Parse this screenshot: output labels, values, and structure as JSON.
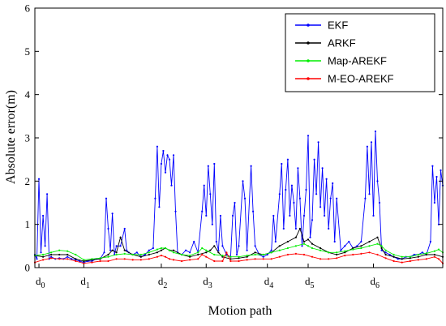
{
  "chart_data": {
    "type": "line",
    "title": "",
    "xlabel": "Motion path",
    "ylabel": "Absolute error(m)",
    "ylim": [
      0,
      6
    ],
    "yticks": [
      0,
      1,
      2,
      3,
      4,
      5,
      6
    ],
    "xlim": [
      0,
      100
    ],
    "grid": false,
    "legend_position": "top-right",
    "x_markers": [
      {
        "base": "d",
        "sub": "0",
        "x": 1
      },
      {
        "base": "d",
        "sub": "1",
        "x": 12
      },
      {
        "base": "d",
        "sub": "2",
        "x": 31
      },
      {
        "base": "d",
        "sub": "3",
        "x": 42
      },
      {
        "base": "d",
        "sub": "4",
        "x": 57
      },
      {
        "base": "d",
        "sub": "5",
        "x": 67
      },
      {
        "base": "d",
        "sub": "6",
        "x": 83
      }
    ],
    "series": [
      {
        "name": "EKF",
        "color": "#0000ff",
        "points": [
          [
            0,
            0.3
          ],
          [
            0.5,
            0.2
          ],
          [
            1,
            2.05
          ],
          [
            1.5,
            0.35
          ],
          [
            2,
            1.2
          ],
          [
            2.5,
            0.5
          ],
          [
            3,
            1.7
          ],
          [
            3.5,
            0.2
          ],
          [
            4,
            0.25
          ],
          [
            5,
            0.2
          ],
          [
            6,
            0.22
          ],
          [
            7,
            0.2
          ],
          [
            8,
            0.25
          ],
          [
            9,
            0.2
          ],
          [
            10,
            0.18
          ],
          [
            11,
            0.15
          ],
          [
            12,
            0.12
          ],
          [
            13,
            0.15
          ],
          [
            14,
            0.15
          ],
          [
            15,
            0.2
          ],
          [
            16,
            0.2
          ],
          [
            17,
            0.35
          ],
          [
            17.5,
            1.6
          ],
          [
            18,
            0.9
          ],
          [
            18.5,
            0.4
          ],
          [
            19,
            1.25
          ],
          [
            19.5,
            0.3
          ],
          [
            20,
            0.5
          ],
          [
            21,
            0.5
          ],
          [
            22,
            0.9
          ],
          [
            22.5,
            0.4
          ],
          [
            23,
            0.35
          ],
          [
            24,
            0.3
          ],
          [
            25,
            0.35
          ],
          [
            26,
            0.25
          ],
          [
            27,
            0.3
          ],
          [
            28,
            0.4
          ],
          [
            29,
            0.45
          ],
          [
            29.5,
            1.6
          ],
          [
            30,
            2.8
          ],
          [
            30.5,
            1.4
          ],
          [
            31,
            2.4
          ],
          [
            31.5,
            2.7
          ],
          [
            32,
            2.2
          ],
          [
            32.5,
            2.6
          ],
          [
            33,
            2.5
          ],
          [
            33.5,
            1.9
          ],
          [
            34,
            2.6
          ],
          [
            34.5,
            1.3
          ],
          [
            35,
            0.35
          ],
          [
            36,
            0.3
          ],
          [
            37,
            0.4
          ],
          [
            38,
            0.35
          ],
          [
            39,
            0.6
          ],
          [
            40,
            0.35
          ],
          [
            41,
            1.3
          ],
          [
            41.5,
            1.9
          ],
          [
            42,
            1.2
          ],
          [
            42.5,
            2.35
          ],
          [
            43,
            1.7
          ],
          [
            43.5,
            1.0
          ],
          [
            44,
            2.4
          ],
          [
            44.5,
            0.6
          ],
          [
            45,
            0.4
          ],
          [
            45.5,
            1.2
          ],
          [
            46,
            0.5
          ],
          [
            47,
            0.3
          ],
          [
            48,
            0.25
          ],
          [
            48.5,
            1.2
          ],
          [
            49,
            1.5
          ],
          [
            49.5,
            0.3
          ],
          [
            50,
            0.5
          ],
          [
            51,
            2.0
          ],
          [
            51.5,
            1.6
          ],
          [
            52,
            0.4
          ],
          [
            53,
            2.35
          ],
          [
            53.5,
            1.3
          ],
          [
            54,
            0.5
          ],
          [
            55,
            0.3
          ],
          [
            56,
            0.25
          ],
          [
            57,
            0.3
          ],
          [
            58,
            0.4
          ],
          [
            58.5,
            1.2
          ],
          [
            59,
            0.6
          ],
          [
            60,
            1.7
          ],
          [
            60.5,
            2.4
          ],
          [
            61,
            0.9
          ],
          [
            61.5,
            1.8
          ],
          [
            62,
            2.5
          ],
          [
            62.5,
            1.2
          ],
          [
            63,
            1.9
          ],
          [
            63.5,
            1.5
          ],
          [
            64,
            0.9
          ],
          [
            64.5,
            2.3
          ],
          [
            65,
            1.6
          ],
          [
            65.5,
            0.5
          ],
          [
            66,
            1.2
          ],
          [
            66.5,
            1.8
          ],
          [
            67,
            3.05
          ],
          [
            67.5,
            0.7
          ],
          [
            68,
            1.1
          ],
          [
            68.5,
            2.5
          ],
          [
            69,
            1.7
          ],
          [
            69.5,
            2.9
          ],
          [
            70,
            1.4
          ],
          [
            70.5,
            2.3
          ],
          [
            71,
            1.2
          ],
          [
            71.5,
            2.05
          ],
          [
            72,
            0.9
          ],
          [
            72.5,
            1.6
          ],
          [
            73,
            1.95
          ],
          [
            73.5,
            0.6
          ],
          [
            74,
            1.6
          ],
          [
            75,
            0.4
          ],
          [
            76,
            0.5
          ],
          [
            77,
            0.6
          ],
          [
            78,
            0.45
          ],
          [
            79,
            0.5
          ],
          [
            80,
            0.6
          ],
          [
            81,
            1.6
          ],
          [
            81.5,
            2.8
          ],
          [
            82,
            1.7
          ],
          [
            82.5,
            2.9
          ],
          [
            83,
            1.2
          ],
          [
            83.5,
            3.15
          ],
          [
            84,
            2.0
          ],
          [
            84.5,
            1.5
          ],
          [
            85,
            0.4
          ],
          [
            86,
            0.35
          ],
          [
            87,
            0.3
          ],
          [
            88,
            0.25
          ],
          [
            89,
            0.2
          ],
          [
            90,
            0.2
          ],
          [
            91,
            0.25
          ],
          [
            92,
            0.25
          ],
          [
            93,
            0.3
          ],
          [
            94,
            0.3
          ],
          [
            95,
            0.35
          ],
          [
            96,
            0.3
          ],
          [
            97,
            0.6
          ],
          [
            97.5,
            2.35
          ],
          [
            98,
            1.5
          ],
          [
            98.5,
            2.1
          ],
          [
            99,
            1.0
          ],
          [
            99.5,
            2.25
          ],
          [
            100,
            1.9
          ]
        ]
      },
      {
        "name": "ARKF",
        "color": "#000000",
        "points": [
          [
            0,
            0.28
          ],
          [
            2,
            0.25
          ],
          [
            4,
            0.3
          ],
          [
            6,
            0.3
          ],
          [
            8,
            0.3
          ],
          [
            10,
            0.2
          ],
          [
            12,
            0.15
          ],
          [
            14,
            0.18
          ],
          [
            16,
            0.2
          ],
          [
            18,
            0.3
          ],
          [
            19,
            0.4
          ],
          [
            20,
            0.35
          ],
          [
            21,
            0.7
          ],
          [
            22,
            0.4
          ],
          [
            24,
            0.3
          ],
          [
            26,
            0.25
          ],
          [
            28,
            0.3
          ],
          [
            30,
            0.35
          ],
          [
            31,
            0.4
          ],
          [
            32,
            0.45
          ],
          [
            33,
            0.4
          ],
          [
            34,
            0.4
          ],
          [
            36,
            0.3
          ],
          [
            38,
            0.25
          ],
          [
            40,
            0.3
          ],
          [
            42,
            0.35
          ],
          [
            43,
            0.4
          ],
          [
            44,
            0.5
          ],
          [
            45,
            0.35
          ],
          [
            46,
            0.25
          ],
          [
            48,
            0.2
          ],
          [
            50,
            0.22
          ],
          [
            52,
            0.25
          ],
          [
            54,
            0.35
          ],
          [
            56,
            0.3
          ],
          [
            58,
            0.35
          ],
          [
            60,
            0.5
          ],
          [
            62,
            0.6
          ],
          [
            64,
            0.7
          ],
          [
            65,
            0.9
          ],
          [
            66,
            0.6
          ],
          [
            67,
            0.65
          ],
          [
            68,
            0.55
          ],
          [
            70,
            0.45
          ],
          [
            72,
            0.35
          ],
          [
            74,
            0.3
          ],
          [
            76,
            0.35
          ],
          [
            78,
            0.45
          ],
          [
            80,
            0.5
          ],
          [
            82,
            0.6
          ],
          [
            84,
            0.7
          ],
          [
            85,
            0.45
          ],
          [
            86,
            0.3
          ],
          [
            88,
            0.25
          ],
          [
            90,
            0.2
          ],
          [
            92,
            0.22
          ],
          [
            94,
            0.25
          ],
          [
            96,
            0.3
          ],
          [
            98,
            0.3
          ],
          [
            100,
            0.25
          ]
        ]
      },
      {
        "name": "Map-AREKF",
        "color": "#00ee00",
        "points": [
          [
            0,
            0.28
          ],
          [
            2,
            0.3
          ],
          [
            4,
            0.35
          ],
          [
            6,
            0.4
          ],
          [
            8,
            0.38
          ],
          [
            10,
            0.3
          ],
          [
            12,
            0.18
          ],
          [
            14,
            0.2
          ],
          [
            16,
            0.22
          ],
          [
            18,
            0.25
          ],
          [
            20,
            0.3
          ],
          [
            22,
            0.32
          ],
          [
            24,
            0.3
          ],
          [
            26,
            0.3
          ],
          [
            28,
            0.35
          ],
          [
            30,
            0.42
          ],
          [
            31,
            0.45
          ],
          [
            32,
            0.45
          ],
          [
            33,
            0.4
          ],
          [
            34,
            0.35
          ],
          [
            36,
            0.3
          ],
          [
            38,
            0.28
          ],
          [
            40,
            0.35
          ],
          [
            41,
            0.45
          ],
          [
            42,
            0.4
          ],
          [
            44,
            0.3
          ],
          [
            46,
            0.28
          ],
          [
            48,
            0.25
          ],
          [
            50,
            0.25
          ],
          [
            52,
            0.28
          ],
          [
            54,
            0.3
          ],
          [
            56,
            0.3
          ],
          [
            58,
            0.35
          ],
          [
            60,
            0.4
          ],
          [
            62,
            0.45
          ],
          [
            64,
            0.5
          ],
          [
            66,
            0.55
          ],
          [
            67,
            0.5
          ],
          [
            68,
            0.45
          ],
          [
            70,
            0.4
          ],
          [
            72,
            0.35
          ],
          [
            74,
            0.35
          ],
          [
            76,
            0.38
          ],
          [
            78,
            0.42
          ],
          [
            80,
            0.45
          ],
          [
            82,
            0.5
          ],
          [
            84,
            0.55
          ],
          [
            85,
            0.5
          ],
          [
            86,
            0.4
          ],
          [
            88,
            0.3
          ],
          [
            90,
            0.25
          ],
          [
            92,
            0.25
          ],
          [
            94,
            0.3
          ],
          [
            96,
            0.33
          ],
          [
            98,
            0.38
          ],
          [
            99,
            0.42
          ],
          [
            100,
            0.35
          ]
        ]
      },
      {
        "name": "M-EO-AREKF",
        "color": "#ff0000",
        "points": [
          [
            0,
            0.12
          ],
          [
            2,
            0.18
          ],
          [
            4,
            0.22
          ],
          [
            6,
            0.2
          ],
          [
            8,
            0.2
          ],
          [
            10,
            0.15
          ],
          [
            12,
            0.1
          ],
          [
            14,
            0.12
          ],
          [
            16,
            0.15
          ],
          [
            18,
            0.15
          ],
          [
            20,
            0.2
          ],
          [
            22,
            0.2
          ],
          [
            24,
            0.18
          ],
          [
            26,
            0.18
          ],
          [
            28,
            0.2
          ],
          [
            30,
            0.25
          ],
          [
            31,
            0.28
          ],
          [
            32,
            0.25
          ],
          [
            33,
            0.2
          ],
          [
            34,
            0.18
          ],
          [
            36,
            0.15
          ],
          [
            38,
            0.18
          ],
          [
            40,
            0.2
          ],
          [
            41,
            0.3
          ],
          [
            42,
            0.25
          ],
          [
            44,
            0.15
          ],
          [
            46,
            0.15
          ],
          [
            47,
            0.35
          ],
          [
            48,
            0.15
          ],
          [
            50,
            0.15
          ],
          [
            52,
            0.18
          ],
          [
            54,
            0.2
          ],
          [
            56,
            0.2
          ],
          [
            58,
            0.2
          ],
          [
            60,
            0.25
          ],
          [
            62,
            0.3
          ],
          [
            64,
            0.32
          ],
          [
            66,
            0.3
          ],
          [
            68,
            0.25
          ],
          [
            70,
            0.2
          ],
          [
            72,
            0.2
          ],
          [
            74,
            0.22
          ],
          [
            76,
            0.28
          ],
          [
            78,
            0.3
          ],
          [
            80,
            0.32
          ],
          [
            82,
            0.35
          ],
          [
            84,
            0.3
          ],
          [
            86,
            0.22
          ],
          [
            88,
            0.15
          ],
          [
            90,
            0.12
          ],
          [
            92,
            0.15
          ],
          [
            94,
            0.18
          ],
          [
            96,
            0.2
          ],
          [
            98,
            0.25
          ],
          [
            99,
            0.2
          ],
          [
            100,
            0.1
          ]
        ]
      }
    ]
  }
}
